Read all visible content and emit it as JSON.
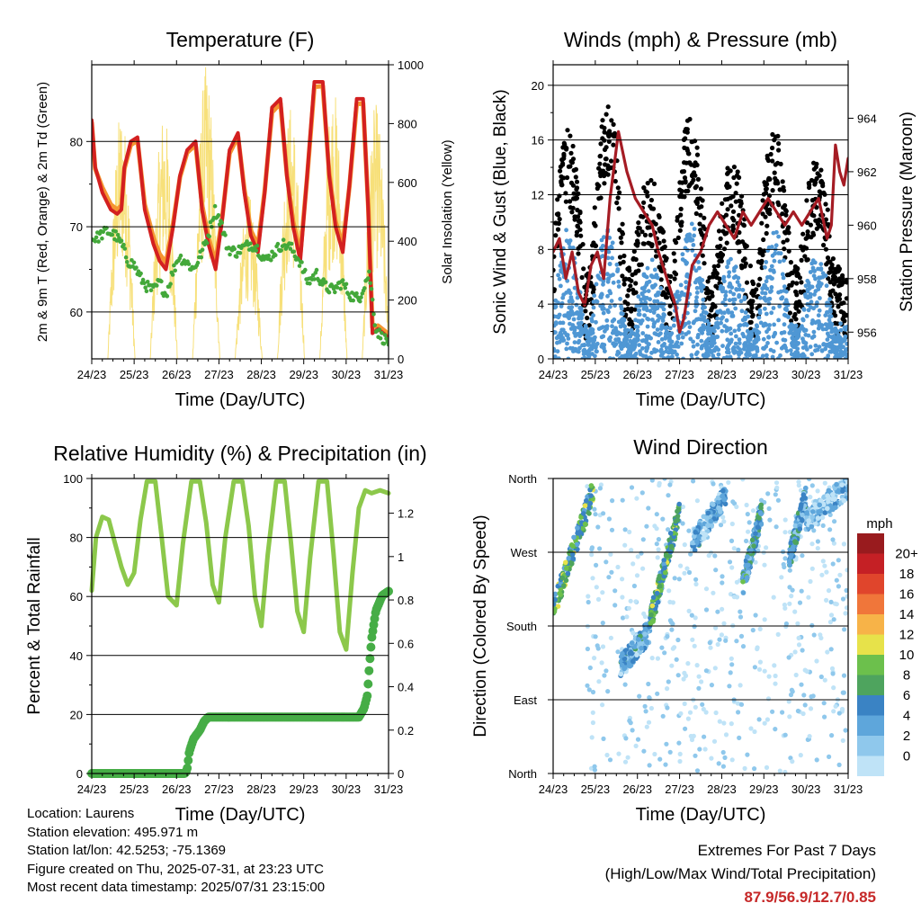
{
  "palette": {
    "temp_red": "#d32020",
    "temp_orange": "#f59531",
    "dewpoint_green": "#43a83a",
    "insolation_yellow": "#f7e07a",
    "wind_blue": "#4f97d4",
    "gust_black": "#000000",
    "pressure_maroon": "#a51c24",
    "rh_lightgreen": "#8cc84b",
    "precip_green": "#46ad46",
    "speed_scale": [
      "#bfe3f7",
      "#8fc8ec",
      "#5ea6db",
      "#3a83c4",
      "#4ea45e",
      "#6cc04c",
      "#e7e24a",
      "#f7b348",
      "#f0763a",
      "#e0452c",
      "#c52025",
      "#991b1e"
    ]
  },
  "chart_data": [
    {
      "id": "temperature",
      "type": "line",
      "title": "Temperature (F)",
      "xlabel": "Time (Day/UTC)",
      "ylabel": "2m & 9m T (Red, Orange) & 2m Td (Green)",
      "ylabel_right": "Solar Insolation (Yellow)",
      "x_ticks": [
        "24/23",
        "25/23",
        "26/23",
        "27/23",
        "28/23",
        "29/23",
        "30/23",
        "31/23"
      ],
      "xlim": [
        0,
        7
      ],
      "ylim": [
        54.5,
        89.0
      ],
      "y_ticks": [
        60,
        70,
        80
      ],
      "y2lim": [
        0,
        1000
      ],
      "y2_ticks": [
        0,
        200,
        400,
        600,
        800,
        1000
      ],
      "grid": true,
      "series": [
        {
          "name": "2m T",
          "color": "temp_red",
          "x": [
            0,
            0.08,
            0.25,
            0.45,
            0.6,
            0.7,
            0.77,
            0.92,
            1.08,
            1.25,
            1.45,
            1.6,
            1.75,
            1.92,
            2.08,
            2.25,
            2.45,
            2.6,
            2.75,
            2.92,
            3.08,
            3.25,
            3.45,
            3.6,
            3.75,
            3.92,
            4.08,
            4.25,
            4.45,
            4.6,
            4.75,
            4.92,
            5.08,
            5.25,
            5.45,
            5.6,
            5.75,
            5.92,
            6.08,
            6.25,
            6.4,
            6.52,
            6.62,
            6.75,
            6.88,
            7
          ],
          "y": [
            82.5,
            77,
            74,
            72,
            71.5,
            72,
            77,
            80,
            80.5,
            72,
            68,
            66,
            65,
            70,
            76,
            79,
            80,
            72,
            68,
            65,
            71,
            79,
            81,
            74,
            69,
            67,
            74,
            84,
            85,
            76,
            70,
            66,
            76,
            87,
            87,
            76,
            70,
            67,
            75,
            85,
            85,
            72,
            57.5,
            58,
            57.5,
            57
          ]
        },
        {
          "name": "9m T",
          "color": "temp_orange",
          "x": [
            0,
            0.08,
            0.25,
            0.45,
            0.6,
            0.7,
            0.77,
            0.92,
            1.08,
            1.25,
            1.45,
            1.6,
            1.75,
            1.92,
            2.08,
            2.25,
            2.45,
            2.6,
            2.75,
            2.92,
            3.08,
            3.25,
            3.45,
            3.6,
            3.75,
            3.92,
            4.08,
            4.25,
            4.45,
            4.6,
            4.75,
            4.92,
            5.08,
            5.25,
            5.45,
            5.6,
            5.75,
            5.92,
            6.08,
            6.25,
            6.4,
            6.52,
            6.62,
            6.75,
            6.88,
            7
          ],
          "y": [
            82.2,
            76.8,
            74.6,
            72.6,
            72,
            72.5,
            76.8,
            79.6,
            80.1,
            72.6,
            68.8,
            66.8,
            65.8,
            70.4,
            75.8,
            78.7,
            79.6,
            72.6,
            68.8,
            65.8,
            71.2,
            78.6,
            80.6,
            74.4,
            69.6,
            67.8,
            74.2,
            83.4,
            84.5,
            76.2,
            70.6,
            66.8,
            75.8,
            86.4,
            86.5,
            76.3,
            70.6,
            67.8,
            74.8,
            84.4,
            84.5,
            72.4,
            58.2,
            58.4,
            57.9,
            57.4
          ]
        },
        {
          "name": "2m Td",
          "color": "dewpoint_green",
          "x": [
            0,
            0.15,
            0.35,
            0.55,
            0.7,
            0.85,
            1.0,
            1.15,
            1.3,
            1.45,
            1.6,
            1.75,
            1.9,
            2.05,
            2.2,
            2.4,
            2.6,
            2.75,
            2.9,
            3.05,
            3.2,
            3.4,
            3.55,
            3.75,
            3.9,
            4.1,
            4.3,
            4.5,
            4.7,
            4.9,
            5.1,
            5.3,
            5.5,
            5.7,
            5.9,
            6.1,
            6.3,
            6.45,
            6.55,
            6.7,
            6.85,
            7
          ],
          "y": [
            68.5,
            68.8,
            69.5,
            69,
            68,
            66,
            65.5,
            64,
            63,
            62.5,
            63.5,
            62,
            64.5,
            66.5,
            66,
            65,
            67,
            69,
            72,
            70.5,
            67.5,
            67,
            67.5,
            68,
            67.5,
            66,
            67,
            68,
            67.5,
            66,
            63.5,
            64.5,
            63,
            62.5,
            63.5,
            62,
            61.5,
            63.5,
            64.5,
            58,
            57,
            56.5
          ]
        },
        {
          "name": "Solar Insolation",
          "color": "insolation_yellow",
          "axis": "right",
          "day_peaks": [
            860,
            850,
            1000,
            560,
            870,
            930,
            870
          ],
          "day_noon": [
            0.7,
            1.7,
            2.7,
            3.7,
            4.7,
            5.7,
            6.7
          ]
        }
      ]
    },
    {
      "id": "winds",
      "type": "scatter",
      "title": "Winds (mph) & Pressure (mb)",
      "xlabel": "Time (Day/UTC)",
      "ylabel": "Sonic Wind & Gust (Blue, Black)",
      "ylabel_right": "Station Pressure (Maroon)",
      "x_ticks": [
        "24/23",
        "25/23",
        "26/23",
        "27/23",
        "28/23",
        "29/23",
        "30/23",
        "31/23"
      ],
      "xlim": [
        0,
        7
      ],
      "ylim": [
        0,
        21.5
      ],
      "y_ticks": [
        0,
        4,
        8,
        12,
        16,
        20
      ],
      "y2lim": [
        955,
        966
      ],
      "y2_ticks": [
        956,
        958,
        960,
        962,
        964
      ],
      "grid": true,
      "series": [
        {
          "name": "Wind",
          "color": "wind_blue",
          "marker": "dot",
          "day_profile": [
            {
              "center": 0.35,
              "level": 8.5
            },
            {
              "center": 1.3,
              "level": 9.0
            },
            {
              "center": 2.3,
              "level": 6.5
            },
            {
              "center": 3.25,
              "level": 9.5
            },
            {
              "center": 4.25,
              "level": 7.0
            },
            {
              "center": 5.25,
              "level": 9.0
            },
            {
              "center": 6.25,
              "level": 7.5
            }
          ],
          "night_level": 2.0
        },
        {
          "name": "Gust",
          "color": "gust_black",
          "marker": "dot",
          "day_profile": [
            {
              "center": 0.35,
              "level": 13.5
            },
            {
              "center": 1.3,
              "level": 15.5
            },
            {
              "center": 2.3,
              "level": 10.5
            },
            {
              "center": 3.25,
              "level": 14.5
            },
            {
              "center": 4.25,
              "level": 11.5
            },
            {
              "center": 5.25,
              "level": 13.5
            },
            {
              "center": 6.25,
              "level": 11.5
            }
          ],
          "night_level": 3.5
        },
        {
          "name": "Station Pressure",
          "color": "pressure_maroon",
          "axis": "right",
          "x": [
            0,
            0.15,
            0.3,
            0.45,
            0.6,
            0.75,
            0.9,
            1.05,
            1.2,
            1.35,
            1.55,
            1.75,
            1.95,
            2.15,
            2.35,
            2.5,
            2.7,
            2.9,
            3.0,
            3.1,
            3.3,
            3.5,
            3.7,
            3.9,
            4.1,
            4.3,
            4.5,
            4.7,
            4.9,
            5.1,
            5.3,
            5.5,
            5.7,
            5.9,
            6.1,
            6.3,
            6.5,
            6.6,
            6.7,
            6.8,
            6.9,
            7
          ],
          "y": [
            959,
            959.5,
            958,
            959,
            957.5,
            957,
            958.5,
            959,
            958,
            961,
            963.5,
            962,
            961,
            960.5,
            960,
            959,
            958,
            957,
            956,
            956.5,
            958.5,
            959,
            960,
            960.5,
            960,
            959.5,
            960.5,
            960,
            960.5,
            961,
            960.5,
            960,
            960.5,
            960,
            960.5,
            961,
            959.5,
            960,
            963,
            962,
            961.5,
            962.5
          ]
        }
      ]
    },
    {
      "id": "humidity",
      "type": "line",
      "title": "Relative Humidity (%) & Precipitation (in)",
      "xlabel": "Time (Day/UTC)",
      "ylabel": "Percent & Total Rainfall",
      "x_ticks": [
        "24/23",
        "25/23",
        "26/23",
        "27/23",
        "28/23",
        "29/23",
        "30/23",
        "31/23"
      ],
      "xlim": [
        0,
        7
      ],
      "ylim": [
        0,
        100
      ],
      "y_ticks": [
        0,
        20,
        40,
        60,
        80,
        100
      ],
      "y2lim": [
        0,
        1.36
      ],
      "y2_ticks": [
        0.0,
        0.2,
        0.4,
        0.6,
        0.8,
        1.0,
        1.2
      ],
      "grid": true,
      "series": [
        {
          "name": "Relative Humidity",
          "color": "rh_lightgreen",
          "x": [
            0,
            0.1,
            0.25,
            0.4,
            0.55,
            0.7,
            0.85,
            1.0,
            1.15,
            1.3,
            1.5,
            1.65,
            1.8,
            2.0,
            2.15,
            2.35,
            2.55,
            2.7,
            2.85,
            3.0,
            3.15,
            3.35,
            3.55,
            3.7,
            3.85,
            4.0,
            4.15,
            4.35,
            4.55,
            4.7,
            4.85,
            5.0,
            5.15,
            5.35,
            5.55,
            5.7,
            5.85,
            6.0,
            6.15,
            6.3,
            6.45,
            6.6,
            6.8,
            7
          ],
          "y": [
            62,
            80,
            87,
            86,
            78,
            70,
            64,
            68,
            86,
            99,
            99,
            80,
            60,
            57,
            78,
            99,
            99,
            85,
            64,
            58,
            80,
            99,
            99,
            84,
            60,
            50,
            74,
            99,
            99,
            78,
            55,
            48,
            73,
            99,
            99,
            75,
            48,
            42,
            68,
            90,
            96,
            95,
            96,
            95
          ]
        },
        {
          "name": "Total Precipitation",
          "color": "precip_green",
          "axis": "right",
          "x": [
            0,
            2.2,
            2.25,
            2.3,
            2.4,
            2.55,
            2.65,
            2.75,
            6.3,
            6.42,
            6.5,
            6.55,
            6.6,
            6.7,
            6.85,
            7
          ],
          "y": [
            0,
            0,
            0.02,
            0.1,
            0.16,
            0.2,
            0.24,
            0.26,
            0.26,
            0.3,
            0.36,
            0.5,
            0.62,
            0.75,
            0.82,
            0.84
          ]
        }
      ]
    },
    {
      "id": "direction",
      "type": "scatter",
      "title": "Wind Direction",
      "xlabel": "Time (Day/UTC)",
      "ylabel": "Direction (Colored By Speed)",
      "x_ticks": [
        "24/23",
        "25/23",
        "26/23",
        "27/23",
        "28/23",
        "29/23",
        "30/23",
        "31/23"
      ],
      "xlim": [
        0,
        7
      ],
      "y_ticks": [
        "North",
        "East",
        "South",
        "West",
        "North"
      ],
      "ylim_degrees": [
        0,
        360
      ],
      "grid": true,
      "legend": {
        "title": "mph",
        "labels": [
          "0",
          "2",
          "4",
          "6",
          "8",
          "10",
          "12",
          "14",
          "16",
          "18",
          "20+"
        ],
        "placement": "right"
      },
      "segments": [
        {
          "x0": 0.0,
          "x1": 0.95,
          "dir0": 200,
          "dir1": 345,
          "speed": 9
        },
        {
          "x0": 1.6,
          "x1": 2.3,
          "dir0": 130,
          "dir1": 175,
          "speed": 5
        },
        {
          "x0": 2.3,
          "x1": 3.0,
          "dir0": 185,
          "dir1": 320,
          "speed": 9
        },
        {
          "x0": 3.3,
          "x1": 4.1,
          "dir0": 280,
          "dir1": 340,
          "speed": 5
        },
        {
          "x0": 4.5,
          "x1": 4.95,
          "dir0": 230,
          "dir1": 320,
          "speed": 7
        },
        {
          "x0": 5.6,
          "x1": 6.0,
          "dir0": 260,
          "dir1": 340,
          "speed": 6
        },
        {
          "x0": 6.0,
          "x1": 7.0,
          "dir0": 310,
          "dir1": 350,
          "speed": 3
        }
      ]
    }
  ],
  "info": {
    "location": "Location: Laurens",
    "elevation": "Station elevation: 495.971 m",
    "latlon": "Station lat/lon: 42.5253; -75.1369",
    "created": "Figure created on Thu, 2025-07-31, at 23:23 UTC",
    "recent": "Most recent data timestamp: 2025/07/31 23:15:00"
  },
  "extremes": {
    "heading": "Extremes For Past 7 Days",
    "subheading": "(High/Low/Max Wind/Total Precipitation)",
    "values": "87.9/56.9/12.7/0.85"
  }
}
